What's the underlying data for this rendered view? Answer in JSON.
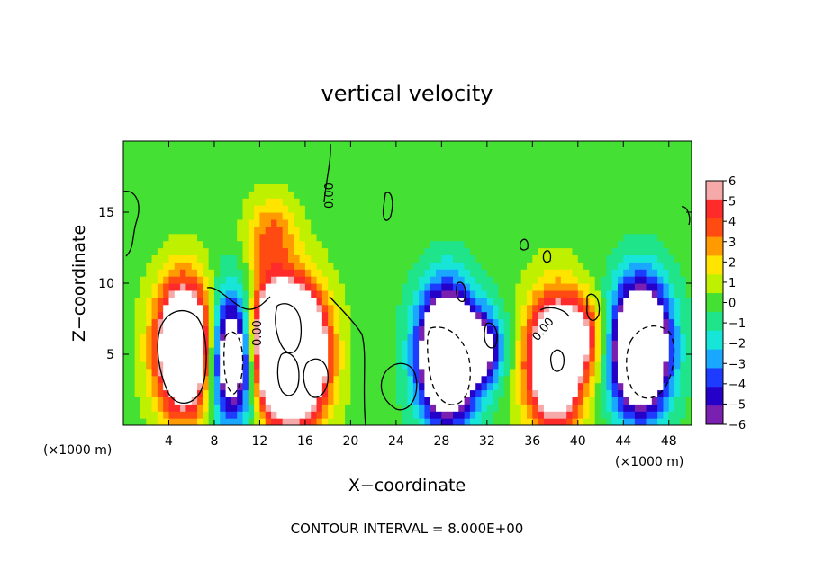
{
  "chart_data": {
    "type": "heatmap",
    "title": "vertical velocity",
    "xlabel": "X−coordinate",
    "ylabel": "Z−coordinate",
    "x_unit_left": "(×1000 m)",
    "x_unit_right": "(×1000 m)",
    "xlim": [
      0,
      50
    ],
    "ylim": [
      0,
      20
    ],
    "x_ticks": [
      4,
      8,
      12,
      16,
      20,
      24,
      28,
      32,
      36,
      40,
      44,
      48
    ],
    "y_ticks": [
      5,
      10,
      15
    ],
    "colorbar": {
      "levels": [
        6,
        5,
        4,
        3,
        2,
        1,
        0,
        -1,
        -2,
        -3,
        -4,
        -5,
        -6
      ],
      "level_labels": [
        "6",
        "5",
        "4",
        "3",
        "2",
        "1",
        "0",
        "−1",
        "−2",
        "−3",
        "−4",
        "−5",
        "−6"
      ],
      "colors": [
        "#f6a9a9",
        "#ff2b2b",
        "#ff4a12",
        "#ff9a00",
        "#ffe400",
        "#bff000",
        "#44e034",
        "#1fe48a",
        "#17e5d8",
        "#1aa7ff",
        "#1d3cff",
        "#2400c8",
        "#7a20b0"
      ]
    },
    "contour_label": "0.00",
    "footer": "CONTOUR INTERVAL = 8.000E+00",
    "features": [
      {
        "x": 5.5,
        "z": 5.5,
        "sign": 1,
        "peak": 14,
        "note": "updraft"
      },
      {
        "x": 10.0,
        "z": 5.0,
        "sign": -1,
        "peak": 14,
        "note": "downdraft"
      },
      {
        "x": 12.5,
        "z": 5.5,
        "sign": 1,
        "peak": 14
      },
      {
        "x": 15.5,
        "z": 5.0,
        "sign": 1,
        "peak": 14
      },
      {
        "x": 13.0,
        "z": 13.5,
        "sign": 1,
        "peak": 3.5
      },
      {
        "x": 28.5,
        "z": 5.0,
        "sign": -1,
        "peak": 14
      },
      {
        "x": 31.5,
        "z": 5.5,
        "sign": -1,
        "peak": 6
      },
      {
        "x": 38.0,
        "z": 4.5,
        "sign": 1,
        "peak": 12
      },
      {
        "x": 40.5,
        "z": 6.5,
        "sign": 1,
        "peak": 4
      },
      {
        "x": 45.5,
        "z": 5.5,
        "sign": -1,
        "peak": 14
      }
    ]
  }
}
